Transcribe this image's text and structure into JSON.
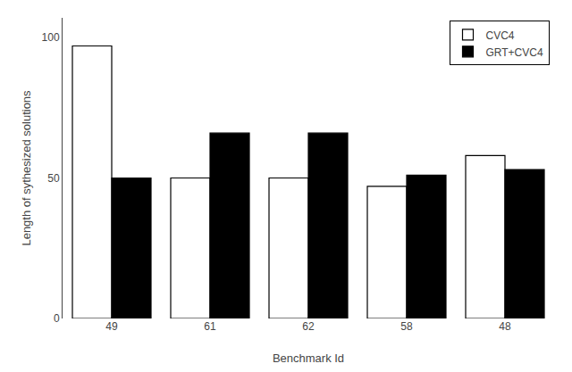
{
  "chart_data": {
    "type": "bar",
    "categories": [
      "49",
      "61",
      "62",
      "58",
      "48"
    ],
    "series": [
      {
        "name": "CVC4",
        "color": "white",
        "values": [
          97,
          50,
          50,
          47,
          58
        ]
      },
      {
        "name": "GRT+CVC4",
        "color": "#000000",
        "values": [
          50,
          66,
          66,
          51,
          53
        ]
      }
    ],
    "xlabel": "Benchmark Id",
    "ylabel": "Length of sythesized solutions",
    "ylim": [
      0,
      107
    ],
    "yticks": [
      0,
      50,
      100
    ],
    "grid": false,
    "legend": "upper right"
  }
}
